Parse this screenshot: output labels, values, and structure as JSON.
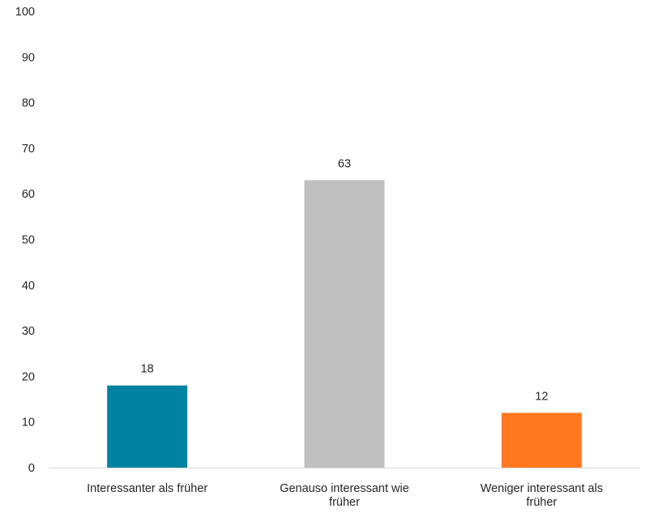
{
  "chart_data": {
    "type": "bar",
    "categories": [
      [
        "Interessanter als früher"
      ],
      [
        "Genauso interessant wie",
        "früher"
      ],
      [
        "Weniger interessant als",
        "früher"
      ]
    ],
    "values": [
      18,
      63,
      12
    ],
    "data_labels": [
      "18",
      "63",
      "12"
    ],
    "bar_colors": [
      "#0083a3",
      "#bfbfbf",
      "#ff781e"
    ],
    "ylim": [
      0,
      100
    ],
    "yticks": [
      0,
      10,
      20,
      30,
      40,
      50,
      60,
      70,
      80,
      90,
      100
    ],
    "title": "",
    "xlabel": "",
    "ylabel": "",
    "grid": false,
    "legend": false
  }
}
